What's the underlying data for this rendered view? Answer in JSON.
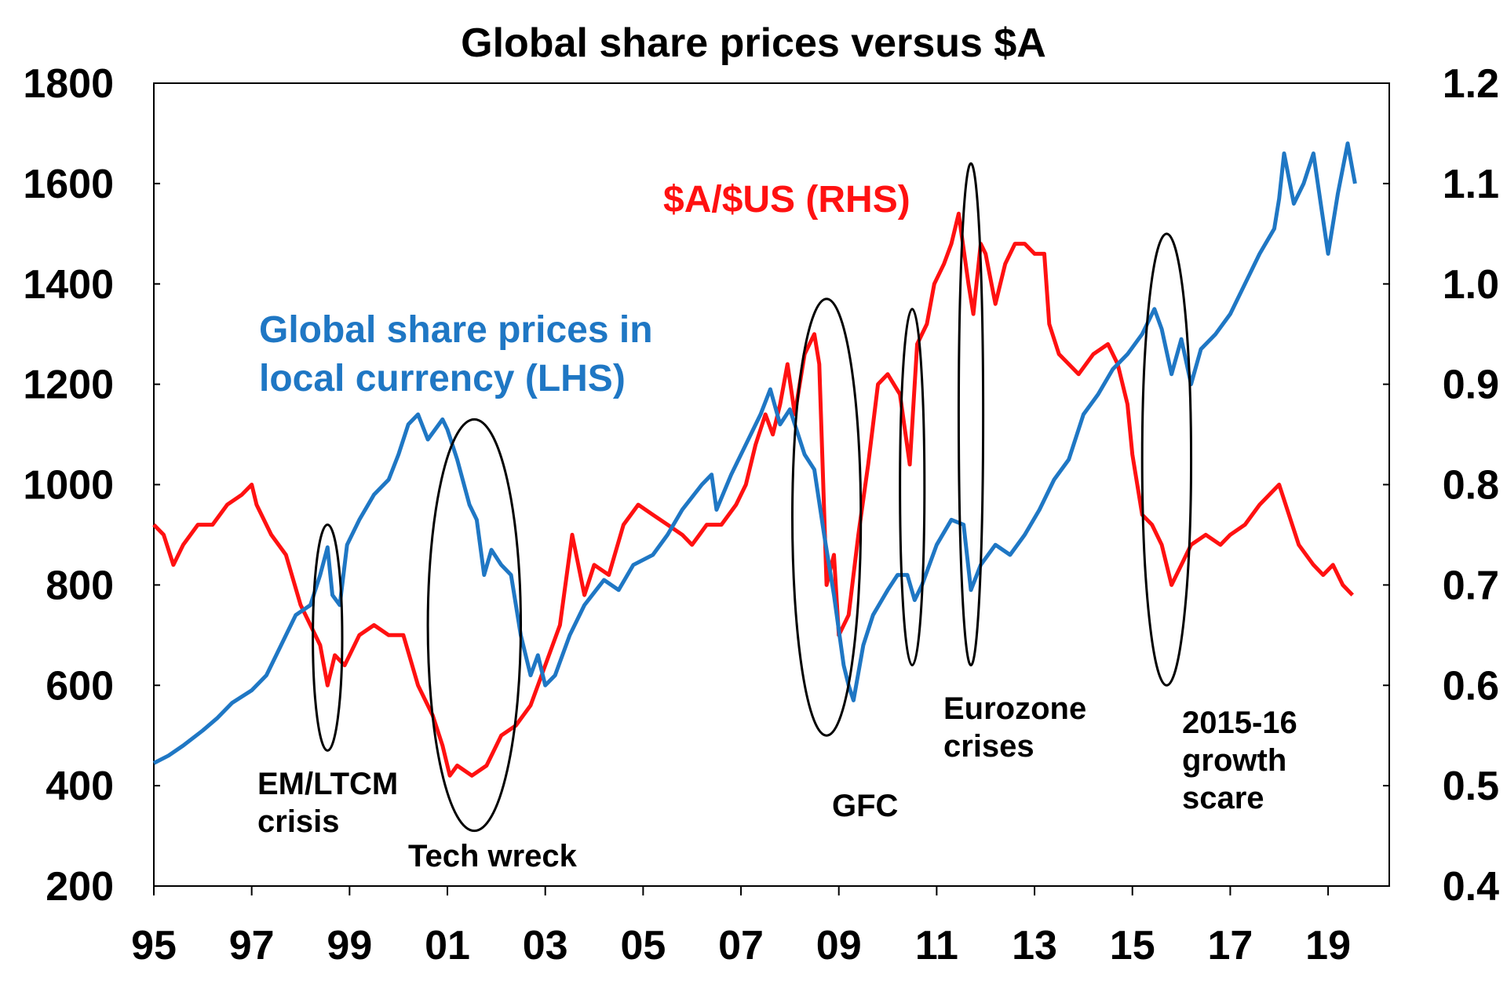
{
  "chart_data": {
    "type": "line",
    "title": "Global share prices versus $A",
    "colors": {
      "shares": "#1f77c4",
      "aud": "#ff1111",
      "axis": "#000000",
      "ellipse": "#000000"
    },
    "x_tick_labels": [
      "95",
      "97",
      "99",
      "01",
      "03",
      "05",
      "07",
      "09",
      "11",
      "13",
      "15",
      "17",
      "19"
    ],
    "xlim": [
      1995,
      2020.25
    ],
    "y_left": {
      "label": "Global share prices in local currency (LHS)",
      "ylim": [
        200,
        1800
      ],
      "ticks": [
        1800,
        1600,
        1400,
        1200,
        1000,
        800,
        600,
        400,
        200
      ]
    },
    "y_right": {
      "label": "$A/$US (RHS)",
      "ylim": [
        0.4,
        1.2
      ],
      "ticks": [
        "1.2",
        "1.1",
        "1.0",
        "0.9",
        "0.8",
        "0.7",
        "0.6",
        "0.5",
        "0.4"
      ],
      "tick_values": [
        1.2,
        1.1,
        1.0,
        0.9,
        0.8,
        0.7,
        0.6,
        0.5,
        0.4
      ]
    },
    "series": [
      {
        "name": "Global share prices in local currency (LHS)",
        "label_lines": [
          "Global share prices in",
          "local currency (LHS)"
        ],
        "axis": "left",
        "points": [
          [
            1995.0,
            445
          ],
          [
            1995.3,
            460
          ],
          [
            1995.6,
            480
          ],
          [
            1996.0,
            510
          ],
          [
            1996.3,
            535
          ],
          [
            1996.6,
            565
          ],
          [
            1997.0,
            590
          ],
          [
            1997.3,
            620
          ],
          [
            1997.6,
            680
          ],
          [
            1997.9,
            740
          ],
          [
            1998.2,
            760
          ],
          [
            1998.4,
            820
          ],
          [
            1998.55,
            875
          ],
          [
            1998.65,
            780
          ],
          [
            1998.8,
            760
          ],
          [
            1998.95,
            880
          ],
          [
            1999.2,
            930
          ],
          [
            1999.5,
            980
          ],
          [
            1999.8,
            1010
          ],
          [
            2000.0,
            1060
          ],
          [
            2000.2,
            1120
          ],
          [
            2000.4,
            1140
          ],
          [
            2000.6,
            1090
          ],
          [
            2000.9,
            1130
          ],
          [
            2001.0,
            1110
          ],
          [
            2001.2,
            1050
          ],
          [
            2001.45,
            960
          ],
          [
            2001.6,
            930
          ],
          [
            2001.75,
            820
          ],
          [
            2001.9,
            870
          ],
          [
            2002.1,
            840
          ],
          [
            2002.3,
            820
          ],
          [
            2002.5,
            700
          ],
          [
            2002.7,
            620
          ],
          [
            2002.85,
            660
          ],
          [
            2003.0,
            600
          ],
          [
            2003.2,
            620
          ],
          [
            2003.5,
            700
          ],
          [
            2003.8,
            760
          ],
          [
            2004.2,
            810
          ],
          [
            2004.5,
            790
          ],
          [
            2004.8,
            840
          ],
          [
            2005.2,
            860
          ],
          [
            2005.5,
            900
          ],
          [
            2005.8,
            950
          ],
          [
            2006.2,
            1000
          ],
          [
            2006.4,
            1020
          ],
          [
            2006.5,
            950
          ],
          [
            2006.8,
            1020
          ],
          [
            2007.1,
            1080
          ],
          [
            2007.4,
            1140
          ],
          [
            2007.6,
            1190
          ],
          [
            2007.8,
            1120
          ],
          [
            2008.0,
            1150
          ],
          [
            2008.3,
            1060
          ],
          [
            2008.5,
            1030
          ],
          [
            2008.7,
            900
          ],
          [
            2008.9,
            780
          ],
          [
            2009.1,
            640
          ],
          [
            2009.2,
            600
          ],
          [
            2009.3,
            570
          ],
          [
            2009.5,
            680
          ],
          [
            2009.7,
            740
          ],
          [
            2010.0,
            790
          ],
          [
            2010.2,
            820
          ],
          [
            2010.4,
            820
          ],
          [
            2010.55,
            770
          ],
          [
            2010.7,
            800
          ],
          [
            2011.0,
            880
          ],
          [
            2011.3,
            930
          ],
          [
            2011.55,
            920
          ],
          [
            2011.7,
            790
          ],
          [
            2011.9,
            840
          ],
          [
            2012.2,
            880
          ],
          [
            2012.5,
            860
          ],
          [
            2012.8,
            900
          ],
          [
            2013.1,
            950
          ],
          [
            2013.4,
            1010
          ],
          [
            2013.7,
            1050
          ],
          [
            2014.0,
            1140
          ],
          [
            2014.3,
            1180
          ],
          [
            2014.6,
            1230
          ],
          [
            2014.9,
            1260
          ],
          [
            2015.2,
            1300
          ],
          [
            2015.45,
            1350
          ],
          [
            2015.6,
            1310
          ],
          [
            2015.8,
            1220
          ],
          [
            2016.0,
            1290
          ],
          [
            2016.2,
            1200
          ],
          [
            2016.4,
            1270
          ],
          [
            2016.7,
            1300
          ],
          [
            2017.0,
            1340
          ],
          [
            2017.3,
            1400
          ],
          [
            2017.6,
            1460
          ],
          [
            2017.9,
            1510
          ],
          [
            2018.0,
            1570
          ],
          [
            2018.1,
            1660
          ],
          [
            2018.3,
            1560
          ],
          [
            2018.5,
            1600
          ],
          [
            2018.7,
            1660
          ],
          [
            2018.85,
            1560
          ],
          [
            2019.0,
            1460
          ],
          [
            2019.2,
            1580
          ],
          [
            2019.4,
            1680
          ],
          [
            2019.55,
            1600
          ]
        ]
      },
      {
        "name": "$A/$US (RHS)",
        "axis": "right",
        "points": [
          [
            1995.0,
            0.76
          ],
          [
            1995.2,
            0.75
          ],
          [
            1995.4,
            0.72
          ],
          [
            1995.6,
            0.74
          ],
          [
            1995.9,
            0.76
          ],
          [
            1996.2,
            0.76
          ],
          [
            1996.5,
            0.78
          ],
          [
            1996.8,
            0.79
          ],
          [
            1997.0,
            0.8
          ],
          [
            1997.1,
            0.78
          ],
          [
            1997.4,
            0.75
          ],
          [
            1997.7,
            0.73
          ],
          [
            1998.0,
            0.68
          ],
          [
            1998.2,
            0.66
          ],
          [
            1998.4,
            0.64
          ],
          [
            1998.55,
            0.6
          ],
          [
            1998.7,
            0.63
          ],
          [
            1998.9,
            0.62
          ],
          [
            1999.2,
            0.65
          ],
          [
            1999.5,
            0.66
          ],
          [
            1999.8,
            0.65
          ],
          [
            2000.1,
            0.65
          ],
          [
            2000.4,
            0.6
          ],
          [
            2000.7,
            0.57
          ],
          [
            2000.9,
            0.54
          ],
          [
            2001.05,
            0.51
          ],
          [
            2001.2,
            0.52
          ],
          [
            2001.5,
            0.51
          ],
          [
            2001.8,
            0.52
          ],
          [
            2002.1,
            0.55
          ],
          [
            2002.4,
            0.56
          ],
          [
            2002.7,
            0.58
          ],
          [
            2003.0,
            0.62
          ],
          [
            2003.3,
            0.66
          ],
          [
            2003.55,
            0.75
          ],
          [
            2003.8,
            0.69
          ],
          [
            2004.0,
            0.72
          ],
          [
            2004.3,
            0.71
          ],
          [
            2004.6,
            0.76
          ],
          [
            2004.9,
            0.78
          ],
          [
            2005.2,
            0.77
          ],
          [
            2005.5,
            0.76
          ],
          [
            2005.8,
            0.75
          ],
          [
            2006.0,
            0.74
          ],
          [
            2006.3,
            0.76
          ],
          [
            2006.6,
            0.76
          ],
          [
            2006.9,
            0.78
          ],
          [
            2007.1,
            0.8
          ],
          [
            2007.3,
            0.84
          ],
          [
            2007.5,
            0.87
          ],
          [
            2007.65,
            0.85
          ],
          [
            2007.8,
            0.88
          ],
          [
            2007.95,
            0.92
          ],
          [
            2008.1,
            0.87
          ],
          [
            2008.3,
            0.93
          ],
          [
            2008.5,
            0.95
          ],
          [
            2008.6,
            0.92
          ],
          [
            2008.75,
            0.7
          ],
          [
            2008.9,
            0.73
          ],
          [
            2009.0,
            0.65
          ],
          [
            2009.2,
            0.67
          ],
          [
            2009.4,
            0.75
          ],
          [
            2009.6,
            0.82
          ],
          [
            2009.8,
            0.9
          ],
          [
            2010.0,
            0.91
          ],
          [
            2010.25,
            0.89
          ],
          [
            2010.45,
            0.82
          ],
          [
            2010.6,
            0.94
          ],
          [
            2010.8,
            0.96
          ],
          [
            2010.95,
            1.0
          ],
          [
            2011.15,
            1.02
          ],
          [
            2011.3,
            1.04
          ],
          [
            2011.45,
            1.07
          ],
          [
            2011.65,
            1.0
          ],
          [
            2011.75,
            0.97
          ],
          [
            2011.9,
            1.04
          ],
          [
            2012.0,
            1.03
          ],
          [
            2012.2,
            0.98
          ],
          [
            2012.4,
            1.02
          ],
          [
            2012.6,
            1.04
          ],
          [
            2012.8,
            1.04
          ],
          [
            2013.0,
            1.03
          ],
          [
            2013.2,
            1.03
          ],
          [
            2013.3,
            0.96
          ],
          [
            2013.5,
            0.93
          ],
          [
            2013.7,
            0.92
          ],
          [
            2013.9,
            0.91
          ],
          [
            2014.2,
            0.93
          ],
          [
            2014.5,
            0.94
          ],
          [
            2014.7,
            0.92
          ],
          [
            2014.9,
            0.88
          ],
          [
            2015.0,
            0.83
          ],
          [
            2015.2,
            0.77
          ],
          [
            2015.4,
            0.76
          ],
          [
            2015.6,
            0.74
          ],
          [
            2015.8,
            0.7
          ],
          [
            2016.0,
            0.72
          ],
          [
            2016.2,
            0.74
          ],
          [
            2016.5,
            0.75
          ],
          [
            2016.8,
            0.74
          ],
          [
            2017.0,
            0.75
          ],
          [
            2017.3,
            0.76
          ],
          [
            2017.6,
            0.78
          ],
          [
            2017.8,
            0.79
          ],
          [
            2018.0,
            0.8
          ],
          [
            2018.2,
            0.77
          ],
          [
            2018.4,
            0.74
          ],
          [
            2018.7,
            0.72
          ],
          [
            2018.9,
            0.71
          ],
          [
            2019.1,
            0.72
          ],
          [
            2019.3,
            0.7
          ],
          [
            2019.5,
            0.69
          ]
        ]
      }
    ],
    "annotations": [
      {
        "name": "em-ltcm-crisis",
        "lines": [
          "EM/LTCM",
          "crisis"
        ]
      },
      {
        "name": "tech-wreck",
        "lines": [
          "Tech wreck"
        ]
      },
      {
        "name": "gfc",
        "lines": [
          "GFC"
        ]
      },
      {
        "name": "eurozone-crises",
        "lines": [
          "Eurozone",
          "crises"
        ]
      },
      {
        "name": "growth-scare-2015-16",
        "lines": [
          "2015-16",
          "growth",
          "scare"
        ]
      }
    ],
    "ellipse_periods": [
      {
        "name": "em-ltcm-ellipse",
        "x_from": 1998.25,
        "x_to": 1998.85,
        "y_from": 470,
        "y_to": 920
      },
      {
        "name": "tech-wreck-ellipse",
        "x_from": 2000.6,
        "x_to": 2002.5,
        "y_from": 310,
        "y_to": 1130
      },
      {
        "name": "gfc-ellipse",
        "x_from": 2008.05,
        "x_to": 2009.45,
        "y_from": 500,
        "y_to": 1370
      },
      {
        "name": "eurozone-2010-ellipse",
        "x_from": 2010.25,
        "x_to": 2010.75,
        "y_from": 640,
        "y_to": 1350
      },
      {
        "name": "eurozone-2011-ellipse",
        "x_from": 2011.45,
        "x_to": 2011.95,
        "y_from": 640,
        "y_to": 1640
      },
      {
        "name": "growth-scare-ellipse",
        "x_from": 2015.2,
        "x_to": 2016.2,
        "y_from": 600,
        "y_to": 1500
      }
    ]
  }
}
